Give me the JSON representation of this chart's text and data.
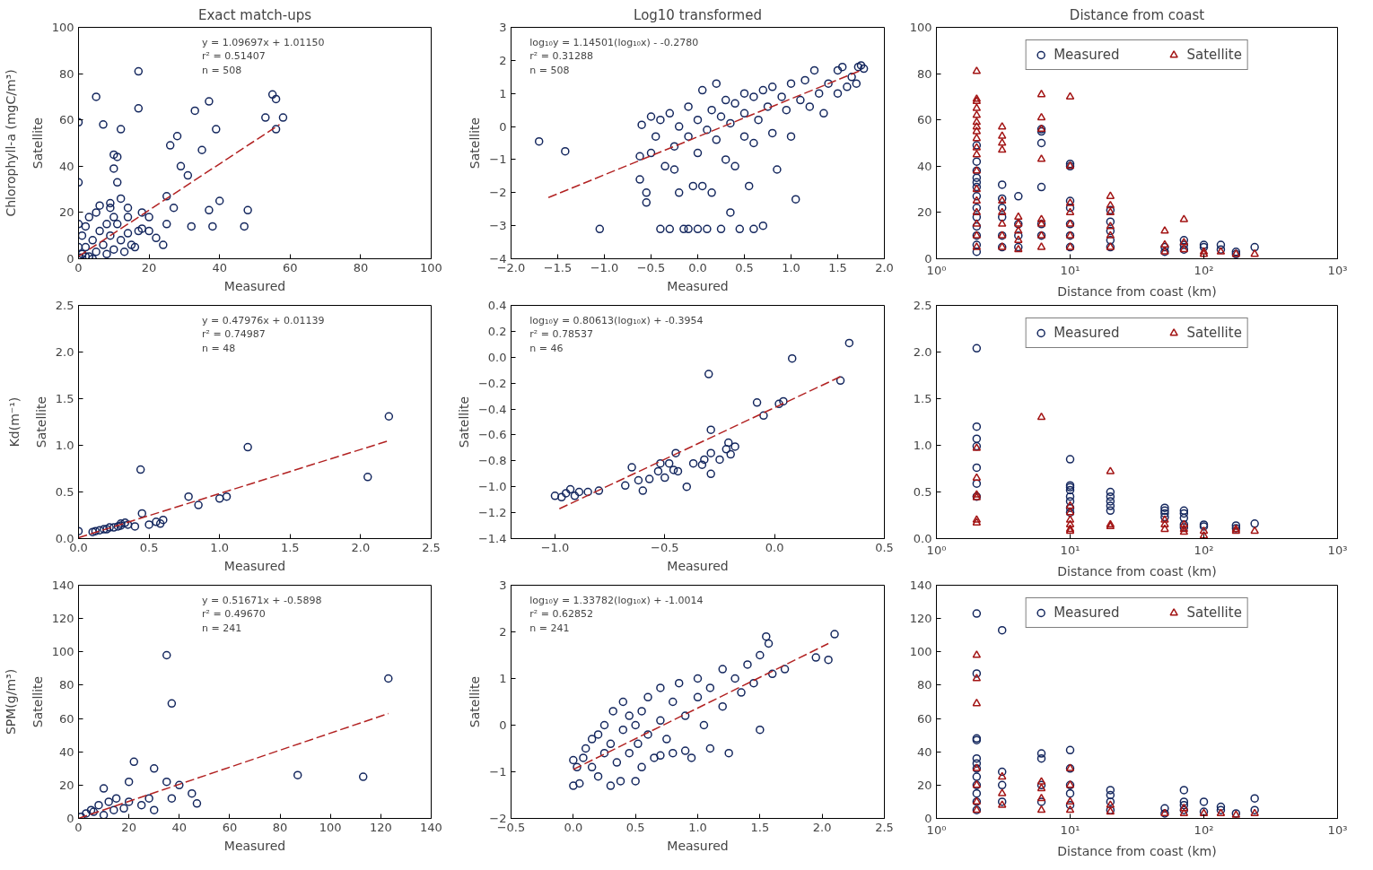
{
  "chart_data": [
    {
      "type": "scatter",
      "title": "Exact match-ups",
      "xlabel": "Measured",
      "ylabel": "Satellite",
      "xlim": [
        0,
        100
      ],
      "ylim": [
        0,
        100
      ],
      "xticks": [
        0,
        20,
        40,
        60,
        80,
        100
      ],
      "yticks": [
        0,
        20,
        40,
        60,
        80,
        100
      ],
      "annotations": [
        "y = 1.09697x + 1.01150\n r² = 0.51407\n n = 508",
        "Chlorophyll-a (mgC/m³)"
      ],
      "series": [
        {
          "color": "#14275e",
          "marker": "circle",
          "x": [
            17,
            5,
            17,
            33,
            37,
            0,
            7,
            12,
            53,
            58,
            56,
            55,
            56,
            39,
            26,
            28,
            35,
            29,
            31,
            10,
            11,
            10,
            0,
            11,
            12,
            9,
            14,
            25,
            40,
            37,
            48,
            47,
            38,
            32,
            24,
            27,
            18,
            20,
            17,
            1,
            2,
            3,
            4,
            5,
            6,
            7,
            8,
            9,
            10,
            11,
            12,
            13,
            14,
            15,
            2,
            3,
            5,
            6,
            8,
            1,
            0,
            4,
            10,
            16,
            18,
            20,
            22,
            25,
            14,
            0,
            9,
            0.5,
            2
          ],
          "values": [
            81,
            70,
            65,
            64,
            68,
            59,
            58,
            56,
            61,
            61,
            56,
            71,
            69,
            56,
            49,
            53,
            47,
            40,
            36,
            45,
            44,
            39,
            33,
            33,
            26,
            22,
            22,
            27,
            25,
            21,
            21,
            14,
            14,
            14,
            6,
            22,
            20,
            18,
            12,
            2,
            5,
            1,
            8,
            3,
            12,
            6,
            2,
            10,
            4,
            15,
            8,
            3,
            11,
            6,
            14,
            18,
            20,
            23,
            15,
            10,
            5,
            0,
            18,
            5,
            13,
            12,
            9,
            15,
            18,
            15,
            24,
            0.5,
            1
          ]
        },
        {
          "type": "line",
          "color": "#b22222",
          "line_style": "dashed",
          "x": [
            0,
            57
          ],
          "values": [
            1,
            58
          ]
        }
      ]
    },
    {
      "type": "scatter",
      "title": "Log10 transformed",
      "xlabel": "Measured",
      "ylabel": "Satellite",
      "xlim": [
        -2,
        2
      ],
      "ylim": [
        -4,
        3
      ],
      "xticks": [
        {
          "value": -2,
          "label": "−2.0"
        },
        {
          "value": -1.5,
          "label": "−1.5"
        },
        {
          "value": -1,
          "label": "−1.0"
        },
        {
          "value": -0.5,
          "label": "−0.5"
        },
        {
          "value": 0,
          "label": "0.0"
        },
        0.5,
        {
          "value": 1,
          "label": "1.0"
        },
        1.5,
        {
          "value": 2,
          "label": "2.0"
        }
      ],
      "yticks": [
        {
          "value": -4,
          "label": "−4"
        },
        {
          "value": -3,
          "label": "−3"
        },
        {
          "value": -2,
          "label": "−2"
        },
        {
          "value": -1,
          "label": "−1"
        },
        0,
        1,
        2,
        3
      ],
      "annotations": [
        "log₁₀y = 1.14501(log₁₀x) - -0.2780\n r² = 0.31288\n n = 508"
      ],
      "series": [
        {
          "color": "#14275e",
          "marker": "circle",
          "x": [
            -1.7,
            -1.42,
            -1.05,
            -0.62,
            -0.62,
            -0.6,
            -0.55,
            -0.55,
            -0.5,
            -0.45,
            -0.4,
            -0.4,
            -0.35,
            -0.3,
            -0.3,
            -0.25,
            -0.25,
            -0.2,
            -0.2,
            -0.15,
            -0.1,
            -0.1,
            -0.05,
            0.0,
            0.0,
            0.0,
            0.05,
            0.05,
            0.1,
            0.1,
            0.15,
            0.15,
            0.2,
            0.2,
            0.25,
            0.3,
            0.3,
            0.35,
            0.35,
            0.4,
            0.4,
            0.45,
            0.5,
            0.5,
            0.5,
            0.55,
            0.6,
            0.6,
            0.65,
            0.7,
            0.7,
            0.75,
            0.8,
            0.8,
            0.85,
            0.9,
            0.95,
            1.0,
            1.0,
            1.05,
            1.1,
            1.15,
            1.2,
            1.25,
            1.3,
            1.35,
            1.4,
            1.5,
            1.5,
            1.55,
            1.6,
            1.65,
            1.7,
            1.72,
            1.75,
            1.78,
            -0.5,
            0.25,
            -0.1,
            0.6
          ],
          "values": [
            -0.45,
            -0.75,
            -3.1,
            -0.9,
            -1.6,
            0.05,
            -2.0,
            -2.3,
            0.3,
            -0.3,
            0.2,
            -3.1,
            -1.2,
            -3.1,
            0.4,
            -0.6,
            -1.3,
            -2.0,
            0.0,
            -3.1,
            -0.3,
            0.6,
            -1.8,
            -3.1,
            0.2,
            -0.8,
            1.1,
            -1.8,
            -0.1,
            -3.1,
            0.5,
            -2.0,
            -0.4,
            1.3,
            0.3,
            -1.0,
            0.8,
            -2.6,
            0.1,
            0.7,
            -1.2,
            -3.1,
            0.4,
            1.0,
            -0.3,
            -1.8,
            0.9,
            -0.5,
            0.2,
            1.1,
            -3.0,
            0.6,
            1.2,
            -0.2,
            -1.3,
            0.9,
            0.5,
            1.3,
            -0.3,
            -2.2,
            0.8,
            1.4,
            0.6,
            1.7,
            1.0,
            0.4,
            1.3,
            1.0,
            1.7,
            1.8,
            1.2,
            1.5,
            1.3,
            1.8,
            1.85,
            1.75,
            -0.8,
            -3.1,
            -3.1,
            -3.1
          ]
        },
        {
          "type": "line",
          "color": "#b22222",
          "line_style": "dashed",
          "x": [
            -1.6,
            1.75
          ],
          "values": [
            -2.15,
            1.7
          ]
        }
      ]
    },
    {
      "type": "scatter",
      "title": "Distance from coast",
      "xlabel": "Distance from coast (km)",
      "log": "x",
      "xlim": [
        1,
        1000
      ],
      "ylim": [
        0,
        100
      ],
      "xticks": [
        {
          "value": 1,
          "label": "10⁰"
        },
        {
          "value": 10,
          "label": "10¹"
        },
        {
          "value": 100,
          "label": "10²"
        },
        {
          "value": 1000,
          "label": "10³"
        }
      ],
      "yticks": [
        0,
        20,
        40,
        60,
        80,
        100
      ],
      "legend": "top",
      "series": [
        {
          "name": "Measured",
          "color": "#14275e",
          "marker": "circle",
          "x": [
            2,
            2,
            2,
            2,
            2,
            2,
            2,
            2,
            2,
            2,
            2,
            2,
            2,
            3.1,
            3.1,
            3.1,
            3.1,
            3.1,
            3.1,
            4.1,
            4.1,
            4.1,
            4.1,
            6.1,
            6.1,
            6.1,
            6.1,
            6.1,
            6.1,
            10,
            10,
            10,
            10,
            10,
            10,
            10,
            20,
            20,
            20,
            20,
            20,
            51,
            51,
            71,
            71,
            71,
            100,
            100,
            134,
            134,
            174,
            174,
            240
          ],
          "values": [
            49,
            42,
            38,
            35,
            33,
            31,
            27,
            22,
            18,
            14,
            10,
            6,
            3,
            32,
            26,
            22,
            18,
            10,
            5,
            27,
            15,
            10,
            5,
            56,
            55,
            50,
            31,
            15,
            10,
            41,
            40,
            25,
            22,
            15,
            10,
            5,
            21,
            16,
            12,
            8,
            5,
            5,
            3,
            8,
            6,
            4,
            6,
            5,
            6,
            4,
            3,
            2,
            5
          ]
        },
        {
          "name": "Satellite",
          "color": "#a31515",
          "marker": "triangle",
          "x": [
            2,
            2,
            2,
            2,
            2,
            2,
            2,
            2,
            2,
            2,
            2,
            2,
            2,
            2,
            2,
            2,
            2,
            2,
            3.1,
            3.1,
            3.1,
            3.1,
            3.1,
            3.1,
            3.1,
            3.1,
            3.1,
            4.1,
            4.1,
            4.1,
            4.1,
            4.1,
            6.1,
            6.1,
            6.1,
            6.1,
            6.1,
            6.1,
            6.1,
            6.1,
            10,
            10,
            10,
            10,
            10,
            10,
            10,
            20,
            20,
            20,
            20,
            20,
            20,
            51,
            51,
            51,
            71,
            71,
            71,
            100,
            100,
            134,
            174,
            240
          ],
          "values": [
            81,
            69,
            68,
            65,
            62,
            59,
            57,
            55,
            52,
            48,
            45,
            38,
            30,
            25,
            20,
            15,
            10,
            5,
            57,
            53,
            50,
            47,
            25,
            20,
            15,
            10,
            5,
            18,
            15,
            12,
            8,
            4,
            71,
            61,
            56,
            43,
            17,
            15,
            10,
            5,
            70,
            40,
            24,
            20,
            15,
            10,
            5,
            27,
            23,
            20,
            14,
            10,
            5,
            12,
            6,
            3,
            17,
            7,
            4,
            3,
            2,
            3,
            2,
            2
          ]
        }
      ]
    },
    {
      "type": "scatter",
      "xlabel": "Measured",
      "ylabel": "Satellite",
      "xlim": [
        0,
        2.5
      ],
      "ylim": [
        0,
        2.5
      ],
      "xticks": [
        {
          "value": 0,
          "label": "0.0"
        },
        0.5,
        {
          "value": 1,
          "label": "1.0"
        },
        1.5,
        {
          "value": 2,
          "label": "2.0"
        },
        2.5
      ],
      "yticks": [
        {
          "value": 0,
          "label": "0.0"
        },
        0.5,
        {
          "value": 1,
          "label": "1.0"
        },
        1.5,
        {
          "value": 2,
          "label": "2.0"
        },
        2.5
      ],
      "annotations": [
        "y = 0.47976x + 0.01139\n r² = 0.74987\n n =  48",
        "Kd(m⁻¹)"
      ],
      "series": [
        {
          "color": "#14275e",
          "marker": "circle",
          "x": [
            0,
            0.12,
            0.15,
            0.2,
            0.25,
            0.3,
            0.35,
            0.4,
            0.45,
            0.44,
            0.5,
            0.55,
            0.6,
            0.58,
            0.78,
            0.85,
            1.0,
            1.05,
            1.2,
            2.05,
            2.2,
            0.3,
            0.33,
            0.1,
            0.18,
            0.22,
            0.28
          ],
          "values": [
            0.08,
            0.08,
            0.09,
            0.1,
            0.12,
            0.14,
            0.15,
            0.13,
            0.27,
            0.74,
            0.15,
            0.18,
            0.2,
            0.16,
            0.45,
            0.36,
            0.43,
            0.45,
            0.98,
            0.66,
            1.31,
            0.16,
            0.17,
            0.07,
            0.1,
            0.12,
            0.13
          ]
        },
        {
          "type": "line",
          "color": "#b22222",
          "line_style": "dashed",
          "x": [
            0,
            2.2
          ],
          "values": [
            0.01,
            1.05
          ]
        }
      ]
    },
    {
      "type": "scatter",
      "xlabel": "Measured",
      "ylabel": "Satellite",
      "xlim": [
        -1.2,
        0.5
      ],
      "ylim": [
        -1.4,
        0.4
      ],
      "xticks": [
        {
          "value": -1,
          "label": "−1.0"
        },
        {
          "value": -0.5,
          "label": "−0.5"
        },
        {
          "value": 0,
          "label": "0.0"
        },
        0.5
      ],
      "yticks": [
        {
          "value": -1.4,
          "label": "−1.4"
        },
        {
          "value": -1.2,
          "label": "−1.2"
        },
        {
          "value": -1,
          "label": "−1.0"
        },
        {
          "value": -0.8,
          "label": "−0.8"
        },
        {
          "value": -0.6,
          "label": "−0.6"
        },
        {
          "value": -0.4,
          "label": "−0.4"
        },
        {
          "value": -0.2,
          "label": "−0.2"
        },
        {
          "value": 0,
          "label": "0.0"
        },
        0.2,
        0.4
      ],
      "annotations": [
        "log₁₀y = 0.80613(log₁₀x) + -0.3954\n r² = 0.78537\n n =  46"
      ],
      "series": [
        {
          "color": "#14275e",
          "marker": "circle",
          "x": [
            -1.0,
            -0.97,
            -0.95,
            -0.93,
            -0.91,
            -0.89,
            -0.85,
            -0.8,
            -0.68,
            -0.65,
            -0.62,
            -0.6,
            -0.57,
            -0.53,
            -0.52,
            -0.5,
            -0.48,
            -0.46,
            -0.45,
            -0.44,
            -0.4,
            -0.37,
            -0.33,
            -0.32,
            -0.3,
            -0.29,
            -0.29,
            -0.29,
            -0.25,
            -0.22,
            -0.21,
            -0.2,
            -0.18,
            -0.08,
            -0.05,
            0.02,
            0.04,
            0.08,
            0.3,
            0.34
          ],
          "values": [
            -1.07,
            -1.08,
            -1.05,
            -1.02,
            -1.07,
            -1.04,
            -1.04,
            -1.03,
            -0.99,
            -0.85,
            -0.95,
            -1.03,
            -0.94,
            -0.88,
            -0.82,
            -0.93,
            -0.82,
            -0.87,
            -0.74,
            -0.88,
            -1.0,
            -0.82,
            -0.83,
            -0.79,
            -0.13,
            -0.56,
            -0.74,
            -0.9,
            -0.79,
            -0.71,
            -0.66,
            -0.75,
            -0.69,
            -0.35,
            -0.45,
            -0.36,
            -0.34,
            -0.01,
            -0.18,
            0.11
          ]
        },
        {
          "type": "line",
          "color": "#b22222",
          "line_style": "dashed",
          "x": [
            -0.98,
            0.3
          ],
          "values": [
            -1.17,
            -0.15
          ]
        }
      ]
    },
    {
      "type": "scatter",
      "xlabel": "Distance from coast (km)",
      "log": "x",
      "xlim": [
        1,
        1000
      ],
      "ylim": [
        0,
        2.5
      ],
      "xticks": [
        {
          "value": 1,
          "label": "10⁰"
        },
        {
          "value": 10,
          "label": "10¹"
        },
        {
          "value": 100,
          "label": "10²"
        },
        {
          "value": 1000,
          "label": "10³"
        }
      ],
      "yticks": [
        {
          "value": 0,
          "label": "0.0"
        },
        0.5,
        {
          "value": 1,
          "label": "1.0"
        },
        1.5,
        {
          "value": 2,
          "label": "2.0"
        },
        2.5
      ],
      "legend": "top",
      "series": [
        {
          "name": "Measured",
          "color": "#14275e",
          "marker": "circle",
          "x": [
            2,
            2,
            2,
            2,
            2,
            2,
            2,
            10,
            10,
            10,
            10,
            10,
            10,
            10,
            10,
            20,
            20,
            20,
            20,
            20,
            51,
            51,
            51,
            51,
            71,
            71,
            71,
            71,
            71,
            100,
            100,
            174,
            174,
            240
          ],
          "values": [
            2.04,
            1.2,
            1.07,
            0.99,
            0.76,
            0.59,
            0.45,
            0.85,
            0.57,
            0.55,
            0.52,
            0.45,
            0.4,
            0.33,
            0.28,
            0.5,
            0.45,
            0.4,
            0.35,
            0.3,
            0.33,
            0.3,
            0.27,
            0.23,
            0.3,
            0.27,
            0.22,
            0.15,
            0.12,
            0.15,
            0.13,
            0.14,
            0.11,
            0.16
          ]
        },
        {
          "name": "Satellite",
          "color": "#a31515",
          "marker": "triangle",
          "x": [
            2,
            2,
            2,
            2,
            2,
            2,
            6.1,
            10,
            10,
            10,
            10,
            10,
            10,
            20,
            20,
            20,
            51,
            51,
            51,
            71,
            71,
            71,
            100,
            100,
            174,
            174,
            240
          ],
          "values": [
            0.97,
            0.65,
            0.47,
            0.44,
            0.2,
            0.17,
            1.3,
            0.35,
            0.28,
            0.2,
            0.15,
            0.1,
            0.08,
            0.72,
            0.15,
            0.13,
            0.2,
            0.15,
            0.1,
            0.15,
            0.1,
            0.07,
            0.08,
            0.03,
            0.1,
            0.08,
            0.08
          ]
        }
      ]
    },
    {
      "type": "scatter",
      "xlabel": "Measured",
      "ylabel": "Satellite",
      "xlim": [
        0,
        140
      ],
      "ylim": [
        0,
        140
      ],
      "xticks": [
        0,
        20,
        40,
        60,
        80,
        100,
        120,
        140
      ],
      "yticks": [
        0,
        20,
        40,
        60,
        80,
        100,
        120,
        140
      ],
      "annotations": [
        "y = 0.51671x + -0.5898\n r² = 0.49670\n n = 241",
        "SPM(g/m³)"
      ],
      "series": [
        {
          "color": "#14275e",
          "marker": "circle",
          "x": [
            35,
            37,
            123,
            87,
            113,
            22,
            30,
            10,
            20,
            35,
            40,
            45,
            47,
            37,
            28,
            25,
            15,
            5,
            8,
            12,
            3,
            1,
            6,
            18,
            30,
            10,
            14,
            20
          ],
          "values": [
            98,
            69,
            84,
            26,
            25,
            34,
            30,
            18,
            22,
            22,
            20,
            15,
            9,
            12,
            12,
            8,
            12,
            5,
            8,
            10,
            3,
            1,
            4,
            6,
            5,
            2,
            5,
            10
          ]
        },
        {
          "type": "line",
          "color": "#b22222",
          "line_style": "dashed",
          "x": [
            0,
            123
          ],
          "values": [
            0,
            63
          ]
        }
      ]
    },
    {
      "type": "scatter",
      "xlabel": "Measured",
      "ylabel": "Satellite",
      "xlim": [
        -0.5,
        2.5
      ],
      "ylim": [
        -2,
        3
      ],
      "xticks": [
        {
          "value": -0.5,
          "label": "−0.5"
        },
        {
          "value": 0,
          "label": "0.0"
        },
        0.5,
        {
          "value": 1,
          "label": "1.0"
        },
        1.5,
        {
          "value": 2,
          "label": "2.0"
        },
        2.5
      ],
      "yticks": [
        {
          "value": -2,
          "label": "−2"
        },
        {
          "value": -1,
          "label": "−1"
        },
        0,
        1,
        2,
        3
      ],
      "annotations": [
        "log₁₀y = 1.33782(log₁₀x) + -1.0014\n r² = 0.62852\n n = 241"
      ],
      "series": [
        {
          "color": "#14275e",
          "marker": "circle",
          "x": [
            0.0,
            0.0,
            0.03,
            0.05,
            0.08,
            0.1,
            0.15,
            0.15,
            0.2,
            0.2,
            0.25,
            0.25,
            0.3,
            0.3,
            0.32,
            0.35,
            0.38,
            0.4,
            0.4,
            0.45,
            0.45,
            0.5,
            0.5,
            0.52,
            0.55,
            0.55,
            0.6,
            0.6,
            0.65,
            0.7,
            0.7,
            0.75,
            0.8,
            0.8,
            0.85,
            0.9,
            0.95,
            1.0,
            1.0,
            1.05,
            1.1,
            1.1,
            1.2,
            1.2,
            1.25,
            1.3,
            1.35,
            1.4,
            1.45,
            1.5,
            1.5,
            1.55,
            1.57,
            1.6,
            1.7,
            1.95,
            2.05,
            2.1,
            0.7,
            0.9
          ],
          "values": [
            -0.75,
            -1.3,
            -0.9,
            -1.25,
            -0.7,
            -0.5,
            -0.9,
            -0.3,
            -0.2,
            -1.1,
            -0.6,
            0.0,
            -1.3,
            -0.4,
            0.3,
            -0.8,
            -1.2,
            0.5,
            -0.1,
            -0.6,
            0.2,
            -1.2,
            0.0,
            -0.4,
            0.3,
            -0.9,
            -0.2,
            0.6,
            -0.7,
            0.1,
            0.8,
            -0.3,
            0.5,
            -0.6,
            0.9,
            0.2,
            -0.7,
            0.6,
            1.0,
            0.0,
            0.8,
            -0.5,
            1.2,
            0.4,
            -0.6,
            1.0,
            0.7,
            1.3,
            0.9,
            1.5,
            -0.1,
            1.9,
            1.75,
            1.1,
            1.2,
            1.45,
            1.4,
            1.95,
            -0.65,
            -0.55
          ]
        },
        {
          "type": "line",
          "color": "#b22222",
          "line_style": "dashed",
          "x": [
            0,
            2.05
          ],
          "values": [
            -0.95,
            1.75
          ]
        }
      ]
    },
    {
      "type": "scatter",
      "xlabel": "Distance from coast (km)",
      "log": "x",
      "xlim": [
        1,
        1000
      ],
      "ylim": [
        0,
        140
      ],
      "xticks": [
        {
          "value": 1,
          "label": "10⁰"
        },
        {
          "value": 10,
          "label": "10¹"
        },
        {
          "value": 100,
          "label": "10²"
        },
        {
          "value": 1000,
          "label": "10³"
        }
      ],
      "yticks": [
        0,
        20,
        40,
        60,
        80,
        100,
        120,
        140
      ],
      "legend": "top",
      "series": [
        {
          "name": "Measured",
          "color": "#14275e",
          "marker": "circle",
          "x": [
            2,
            2,
            2,
            2,
            2,
            2,
            2,
            2,
            2,
            2,
            2,
            2,
            3.1,
            3.1,
            3.1,
            3.1,
            6.1,
            6.1,
            6.1,
            6.1,
            10,
            10,
            10,
            10,
            10,
            20,
            20,
            20,
            20,
            51,
            51,
            71,
            71,
            71,
            71,
            100,
            100,
            134,
            134,
            174,
            240,
            240
          ],
          "values": [
            123,
            87,
            48,
            47,
            36,
            33,
            30,
            25,
            20,
            15,
            10,
            5,
            113,
            28,
            20,
            10,
            39,
            36,
            20,
            10,
            41,
            30,
            20,
            15,
            8,
            17,
            14,
            10,
            5,
            6,
            3,
            17,
            10,
            8,
            5,
            10,
            4,
            7,
            5,
            3,
            12,
            5
          ]
        },
        {
          "name": "Satellite",
          "color": "#a31515",
          "marker": "triangle",
          "x": [
            2,
            2,
            2,
            2,
            2,
            2,
            2,
            3.1,
            3.1,
            3.1,
            6.1,
            6.1,
            6.1,
            6.1,
            10,
            10,
            10,
            10,
            20,
            20,
            51,
            71,
            71,
            100,
            134,
            174,
            240
          ],
          "values": [
            98,
            84,
            69,
            30,
            20,
            10,
            5,
            25,
            15,
            8,
            22,
            18,
            12,
            5,
            30,
            20,
            10,
            5,
            8,
            4,
            3,
            6,
            3,
            3,
            3,
            2,
            3
          ]
        }
      ]
    }
  ]
}
